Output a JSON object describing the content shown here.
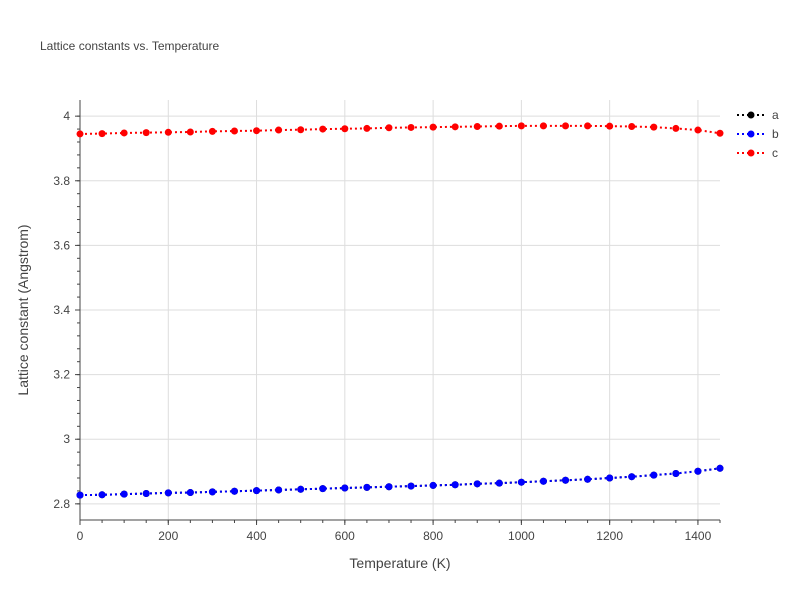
{
  "chart_data": {
    "type": "line",
    "title": "Lattice constants vs. Temperature",
    "xlabel": "Temperature (K)",
    "ylabel": "Lattice constant (Angstrom)",
    "xlim": [
      0,
      1450
    ],
    "ylim": [
      2.75,
      4.05
    ],
    "x_ticks": [
      0,
      200,
      400,
      600,
      800,
      1000,
      1200,
      1400
    ],
    "x_tick_labels": [
      "0",
      "200",
      "400",
      "600",
      "800",
      "1000",
      "1200",
      "1400"
    ],
    "y_ticks": [
      2.8,
      3.0,
      3.2,
      3.4,
      3.6,
      3.8,
      4.0
    ],
    "y_tick_labels": [
      "2.8",
      "3",
      "3.2",
      "3.4",
      "3.6",
      "3.8",
      "4"
    ],
    "grid": true,
    "legend_position": "top-right",
    "line_style": "dotted with markers",
    "x": [
      0,
      50,
      100,
      150,
      200,
      250,
      300,
      350,
      400,
      450,
      500,
      550,
      600,
      650,
      700,
      750,
      800,
      850,
      900,
      950,
      1000,
      1050,
      1100,
      1150,
      1200,
      1250,
      1300,
      1350,
      1400,
      1450
    ],
    "series": [
      {
        "name": "a",
        "color": "#000000",
        "values": [
          2.827,
          2.828,
          2.83,
          2.832,
          2.834,
          2.835,
          2.837,
          2.839,
          2.841,
          2.843,
          2.845,
          2.847,
          2.849,
          2.851,
          2.853,
          2.855,
          2.857,
          2.859,
          2.862,
          2.864,
          2.867,
          2.87,
          2.873,
          2.876,
          2.88,
          2.884,
          2.889,
          2.894,
          2.901,
          2.91
        ]
      },
      {
        "name": "b",
        "color": "#0000ff",
        "values": [
          2.827,
          2.828,
          2.83,
          2.832,
          2.834,
          2.835,
          2.837,
          2.839,
          2.841,
          2.843,
          2.845,
          2.847,
          2.849,
          2.851,
          2.853,
          2.855,
          2.857,
          2.859,
          2.862,
          2.864,
          2.867,
          2.87,
          2.873,
          2.876,
          2.88,
          2.884,
          2.889,
          2.894,
          2.901,
          2.91
        ]
      },
      {
        "name": "c",
        "color": "#ff0000",
        "values": [
          3.945,
          3.946,
          3.948,
          3.949,
          3.95,
          3.951,
          3.953,
          3.954,
          3.955,
          3.957,
          3.958,
          3.96,
          3.961,
          3.962,
          3.964,
          3.965,
          3.966,
          3.967,
          3.968,
          3.969,
          3.97,
          3.97,
          3.97,
          3.97,
          3.969,
          3.968,
          3.966,
          3.962,
          3.957,
          3.947
        ]
      }
    ]
  }
}
